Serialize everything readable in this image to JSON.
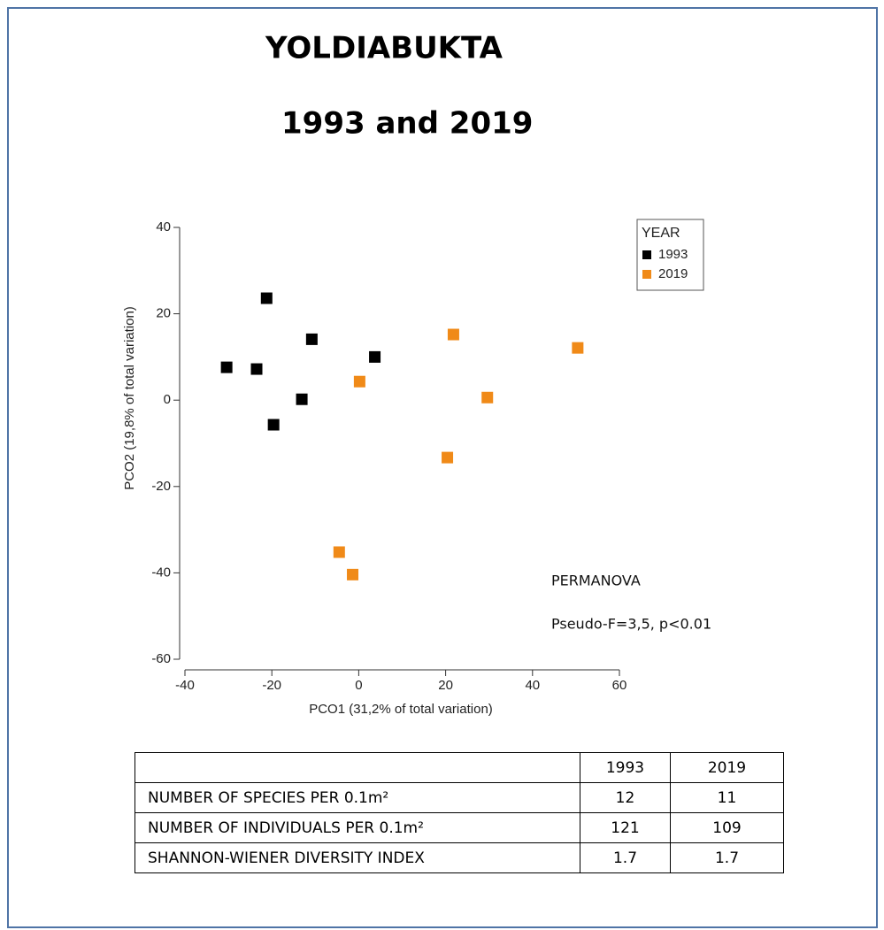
{
  "chart_data": {
    "type": "scatter",
    "title": "YOLDIABUKTA",
    "subtitle": "1993 and 2019",
    "xlabel": "PCO1 (31,2% of total variation)",
    "ylabel": "PCO2 (19,8% of total variation)",
    "xlim": [
      -40,
      60
    ],
    "xticks": [
      -40,
      -20,
      0,
      20,
      40,
      60
    ],
    "ylim": [
      -60,
      40
    ],
    "yticks": [
      -60,
      -40,
      -20,
      0,
      20,
      40
    ],
    "legend_title": "YEAR",
    "legend": "upper right",
    "series": [
      {
        "name": "1993",
        "color": "#000000",
        "x": [
          -21.2,
          -30.4,
          -23.5,
          -10.8,
          -13.1,
          -19.6,
          3.7
        ],
        "values": [
          23.6,
          7.6,
          7.2,
          14.1,
          0.2,
          -5.7,
          10
        ]
      },
      {
        "name": "2019",
        "color": "#f08a18",
        "x": [
          0.2,
          21.8,
          29.6,
          50.4,
          20.4,
          -4.5,
          -1.4
        ],
        "values": [
          4.3,
          15.2,
          0.6,
          12.1,
          -13.3,
          -35.2,
          -40.4
        ]
      }
    ],
    "annotations": [
      "PERMANOVA",
      "Pseudo-F=3,5, p<0.01"
    ]
  },
  "table": {
    "header": [
      "1993",
      "2019"
    ],
    "rows": [
      [
        "NUMBER OF SPECIES PER 0.1m²",
        12,
        11
      ],
      [
        "NUMBER OF INDIVIDUALS PER 0.1m²",
        121,
        109
      ],
      [
        "SHANNON-WIENER DIVERSITY INDEX",
        1.7,
        1.7
      ]
    ]
  }
}
